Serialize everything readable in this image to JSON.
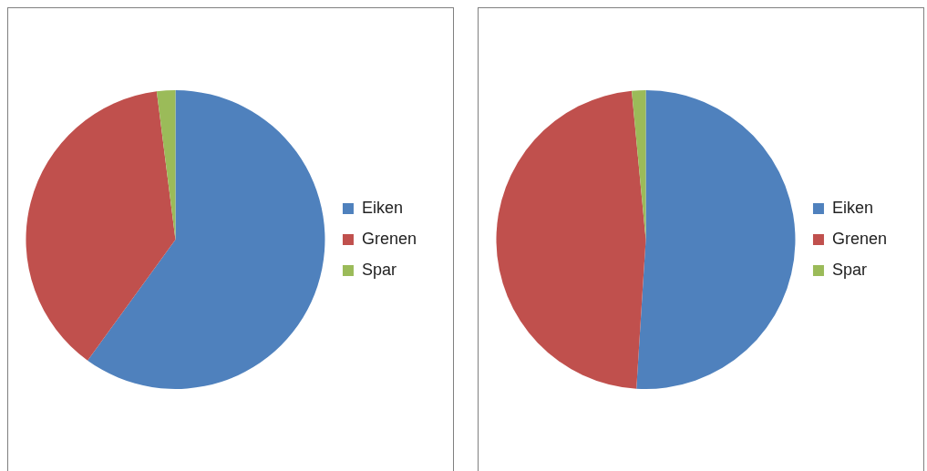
{
  "chart_data": [
    {
      "type": "pie",
      "categories": [
        "Eiken",
        "Grenen",
        "Spar"
      ],
      "values": [
        60,
        38,
        2
      ],
      "colors": [
        "#4f81bd",
        "#c0504d",
        "#9bbb59"
      ],
      "legend": "right"
    },
    {
      "type": "pie",
      "categories": [
        "Eiken",
        "Grenen",
        "Spar"
      ],
      "values": [
        51,
        47.5,
        1.5
      ],
      "colors": [
        "#4f81bd",
        "#c0504d",
        "#9bbb59"
      ],
      "legend": "right"
    }
  ]
}
